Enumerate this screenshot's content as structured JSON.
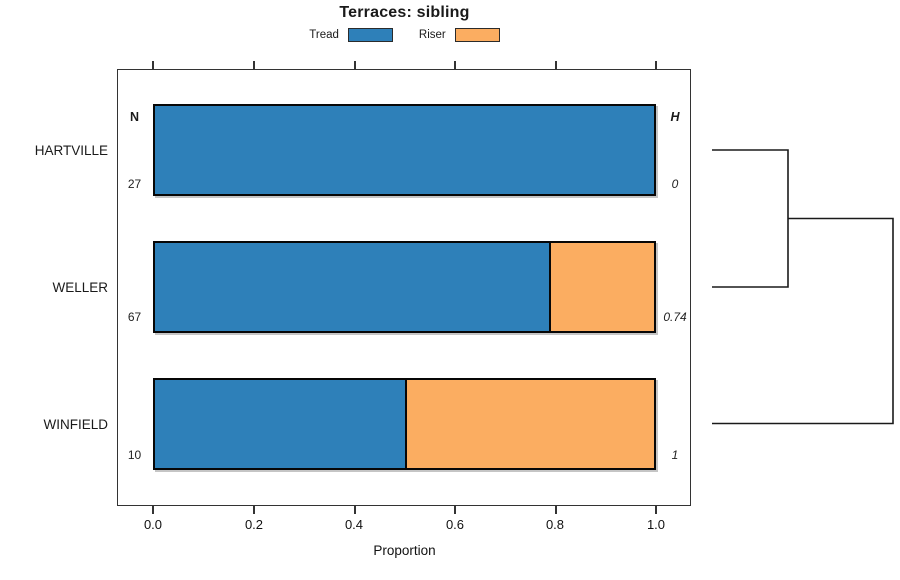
{
  "title": "Terraces: sibling",
  "legend": {
    "items": [
      {
        "label": "Tread",
        "color": "#2E80B9"
      },
      {
        "label": "Riser",
        "color": "#FBAD61"
      }
    ]
  },
  "table": {
    "n_header": "N",
    "h_header": "H"
  },
  "rows": [
    {
      "label": "HARTVILLE",
      "n": "27",
      "h": "0"
    },
    {
      "label": "WELLER",
      "n": "67",
      "h": "0.74"
    },
    {
      "label": "WINFIELD",
      "n": "10",
      "h": "1"
    }
  ],
  "x_axis": {
    "label": "Proportion",
    "ticks": [
      "0.0",
      "0.2",
      "0.4",
      "0.6",
      "0.8",
      "1.0"
    ]
  },
  "chart_data": {
    "type": "bar",
    "orientation": "horizontal",
    "stacked": true,
    "title": "Terraces: sibling",
    "categories": [
      "HARTVILLE",
      "WELLER",
      "WINFIELD"
    ],
    "series": [
      {
        "name": "Tread",
        "color": "#2E80B9",
        "values": [
          1.0,
          0.79,
          0.5
        ]
      },
      {
        "name": "Riser",
        "color": "#FBAD61",
        "values": [
          0.0,
          0.21,
          0.5
        ]
      }
    ],
    "sample_sizes": [
      27,
      67,
      10
    ],
    "heterozygosity": [
      0,
      0.74,
      1
    ],
    "xlabel": "Proportion",
    "xlim": [
      0,
      1
    ],
    "x_ticks": [
      0.0,
      0.2,
      0.4,
      0.6,
      0.8,
      1.0
    ],
    "legend_position": "top",
    "grid": false,
    "dendrogram": {
      "side": "right",
      "leaf_order": [
        "HARTVILLE",
        "WELLER",
        "WINFIELD"
      ],
      "structure": "((HARTVILLE,WELLER),WINFIELD)"
    }
  }
}
